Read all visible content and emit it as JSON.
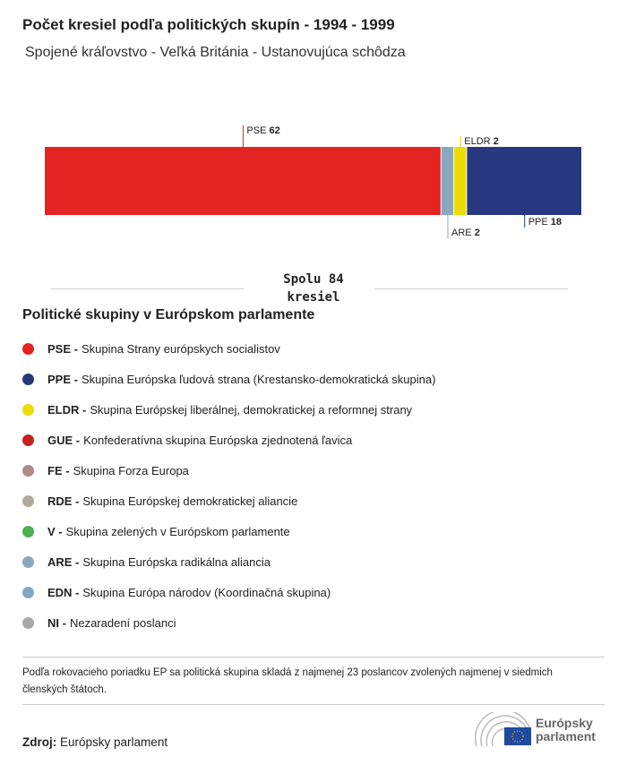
{
  "title": "Počet kresiel podľa politických skupín - 1994 - 1999",
  "subtitle": "Spojené kráľovstvo - Veľká Británia - Ustanovujúca schôdza",
  "chart_data": {
    "type": "bar",
    "orientation": "horizontal-stacked",
    "categories": [
      "PSE",
      "ARE",
      "ELDR",
      "PPE"
    ],
    "values": [
      62,
      2,
      2,
      18
    ],
    "colors": [
      "#e42422",
      "#88a8c0",
      "#ecdc00",
      "#283880"
    ],
    "total": 84
  },
  "total_label_line1": "Spolu 84",
  "total_label_line2": "kresiel",
  "legend_title": "Politické skupiny v Európskom parlamente",
  "legend": [
    {
      "abbr": "PSE -",
      "name": "Skupina Strany európskych socialistov",
      "color": "#e42422"
    },
    {
      "abbr": "PPE -",
      "name": "Skupina Európska ľudová strana (Krestansko-demokratická skupina)",
      "color": "#283880"
    },
    {
      "abbr": "ELDR -",
      "name": "Skupina Európskej liberálnej, demokratickej a reformnej strany",
      "color": "#ecdc00"
    },
    {
      "abbr": "GUE -",
      "name": "Konfederatívna skupina Európska zjednotená ľavica",
      "color": "#c42020"
    },
    {
      "abbr": "FE -",
      "name": "Skupina Forza Europa",
      "color": "#b08a8f"
    },
    {
      "abbr": "RDE -",
      "name": "Skupina Európskej demokratickej aliancie",
      "color": "#b2aa9a"
    },
    {
      "abbr": "V -",
      "name": "Skupina zelených v Európskom parlamente",
      "color": "#4caf50"
    },
    {
      "abbr": "ARE -",
      "name": "Skupina Európska radikálna aliancia",
      "color": "#88a8c0"
    },
    {
      "abbr": "EDN -",
      "name": "Skupina Európa národov (Koordinačná skupina)",
      "color": "#80a8c2"
    },
    {
      "abbr": "NI -",
      "name": "Nezaradení poslanci",
      "color": "#a8a8a8"
    }
  ],
  "note": "Podľa rokovacieho poriadku EP sa politická skupina skladá z najmenej 23 poslancov zvolených najmenej v siedmich členských štátoch.",
  "source_label": "Zdroj:",
  "source_value": "Európsky parlament",
  "logo": {
    "line1": "Európsky",
    "line2": "parlament"
  }
}
